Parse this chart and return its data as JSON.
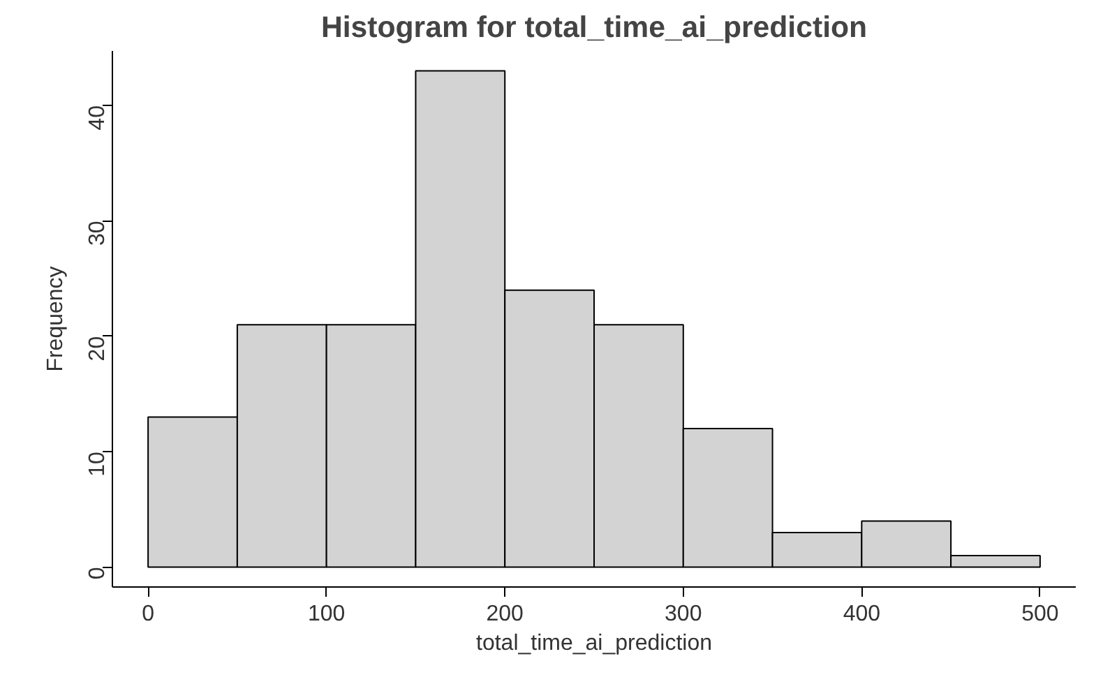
{
  "chart_data": {
    "type": "histogram",
    "title": "Histogram for total_time_ai_prediction",
    "xlabel": "total_time_ai_prediction",
    "ylabel": "Frequency",
    "bins": [
      0,
      50,
      100,
      150,
      200,
      250,
      300,
      350,
      400,
      450,
      500
    ],
    "values": [
      13,
      21,
      21,
      43,
      24,
      21,
      12,
      3,
      4,
      1
    ],
    "color": "#d3d3d3",
    "xlim": [
      -20,
      520
    ],
    "ylim": [
      -1.72,
      44.72
    ],
    "xticks": [
      0,
      100,
      200,
      300,
      400,
      500
    ],
    "yticks": [
      0,
      10,
      20,
      30,
      40
    ],
    "grid": false
  }
}
